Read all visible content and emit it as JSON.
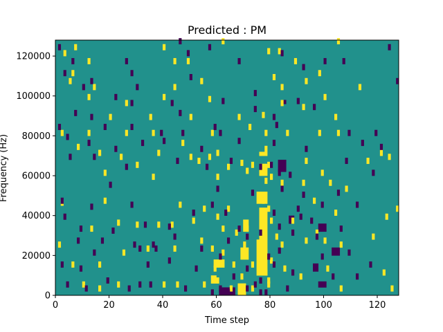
{
  "chart_data": {
    "type": "heatmap",
    "title": "Predicted : PM",
    "xlabel": "Time step",
    "ylabel": "Frequency (Hz)",
    "xlim": [
      0,
      128
    ],
    "ylim": [
      0,
      128000
    ],
    "x_ticks": [
      0,
      20,
      40,
      60,
      80,
      100,
      120
    ],
    "y_ticks": [
      0,
      20000,
      40000,
      60000,
      80000,
      100000,
      120000
    ],
    "x_tick_labels": [
      "0",
      "20",
      "40",
      "60",
      "80",
      "100",
      "120"
    ],
    "y_tick_labels": [
      "0",
      "20000",
      "40000",
      "60000",
      "80000",
      "100000",
      "120000"
    ],
    "grid": false,
    "colormap": "viridis",
    "levels": [
      -1,
      0,
      1
    ],
    "level_colors": {
      "-1": "#440154",
      "0": "#21918c",
      "1": "#fde725"
    },
    "n_time": 128,
    "n_freq": 128,
    "bin_hz": 1000,
    "cells_high": [
      [
        3,
        120
      ],
      [
        7,
        123
      ],
      [
        40,
        123
      ],
      [
        62,
        126
      ],
      [
        79,
        121
      ],
      [
        83,
        121
      ],
      [
        105,
        126
      ],
      [
        12,
        116
      ],
      [
        44,
        116
      ],
      [
        89,
        116
      ],
      [
        6,
        110
      ],
      [
        81,
        108
      ],
      [
        98,
        110
      ],
      [
        5,
        106
      ],
      [
        14,
        103
      ],
      [
        54,
        106
      ],
      [
        93,
        106
      ],
      [
        84,
        103
      ],
      [
        44,
        103
      ],
      [
        113,
        103
      ],
      [
        12,
        98
      ],
      [
        26,
        95
      ],
      [
        40,
        98
      ],
      [
        84,
        95
      ],
      [
        100,
        98
      ],
      [
        92,
        93
      ],
      [
        77,
        89
      ],
      [
        20,
        88
      ],
      [
        35,
        88
      ],
      [
        50,
        88
      ],
      [
        68,
        88
      ],
      [
        104,
        88
      ],
      [
        2,
        80
      ],
      [
        12,
        80
      ],
      [
        26,
        80
      ],
      [
        36,
        80
      ],
      [
        47,
        75
      ],
      [
        58,
        80
      ],
      [
        72,
        83
      ],
      [
        78,
        80
      ],
      [
        86,
        80
      ],
      [
        98,
        80
      ],
      [
        105,
        80
      ],
      [
        8,
        73
      ],
      [
        16,
        70
      ],
      [
        24,
        68
      ],
      [
        30,
        64
      ],
      [
        38,
        70
      ],
      [
        50,
        68
      ],
      [
        53,
        66
      ],
      [
        57,
        68
      ],
      [
        60,
        70
      ],
      [
        64,
        63
      ],
      [
        69,
        65
      ],
      [
        73,
        64
      ],
      [
        78,
        72
      ],
      [
        79,
        64
      ],
      [
        80,
        58
      ],
      [
        84,
        55
      ],
      [
        93,
        66
      ],
      [
        99,
        60
      ],
      [
        116,
        66
      ],
      [
        121,
        70
      ],
      [
        124,
        68
      ],
      [
        18,
        60
      ],
      [
        36,
        58
      ],
      [
        60,
        58
      ],
      [
        71,
        61
      ],
      [
        78,
        56
      ],
      [
        92,
        55
      ],
      [
        102,
        55
      ],
      [
        108,
        52
      ],
      [
        127,
        42
      ],
      [
        2,
        45
      ],
      [
        18,
        46
      ],
      [
        46,
        44
      ],
      [
        55,
        42
      ],
      [
        60,
        38
      ],
      [
        64,
        42
      ],
      [
        77,
        46
      ],
      [
        79,
        42
      ],
      [
        80,
        36
      ],
      [
        82,
        28
      ],
      [
        88,
        36
      ],
      [
        96,
        46
      ],
      [
        104,
        40
      ],
      [
        123,
        38
      ],
      [
        13,
        32
      ],
      [
        23,
        35
      ],
      [
        30,
        34
      ],
      [
        38,
        34
      ],
      [
        43,
        34
      ],
      [
        51,
        36
      ],
      [
        62,
        32
      ],
      [
        67,
        30
      ],
      [
        71,
        32
      ],
      [
        77,
        28
      ],
      [
        78,
        20
      ],
      [
        80,
        16
      ],
      [
        84,
        24
      ],
      [
        97,
        30
      ],
      [
        100,
        26
      ],
      [
        106,
        24
      ],
      [
        118,
        28
      ],
      [
        1,
        24
      ],
      [
        6,
        14
      ],
      [
        16,
        14
      ],
      [
        25,
        20
      ],
      [
        34,
        22
      ],
      [
        44,
        22
      ],
      [
        54,
        26
      ],
      [
        59,
        12
      ],
      [
        62,
        20
      ],
      [
        66,
        14
      ],
      [
        70,
        24
      ],
      [
        73,
        14
      ],
      [
        78,
        10
      ],
      [
        79,
        6
      ],
      [
        85,
        12
      ],
      [
        91,
        8
      ],
      [
        101,
        12
      ],
      [
        122,
        10
      ],
      [
        10,
        4
      ],
      [
        16,
        2
      ],
      [
        23,
        4
      ],
      [
        40,
        4
      ],
      [
        45,
        4
      ],
      [
        55,
        4
      ],
      [
        60,
        6
      ],
      [
        65,
        2
      ],
      [
        69,
        8
      ],
      [
        73,
        2
      ],
      [
        79,
        4
      ],
      [
        106,
        2
      ],
      [
        125,
        2
      ],
      [
        49,
        116
      ],
      [
        57,
        97
      ],
      [
        93,
        26
      ],
      [
        58,
        22
      ]
    ],
    "cells_low": [
      [
        1,
        123
      ],
      [
        6,
        116
      ],
      [
        26,
        116
      ],
      [
        46,
        126
      ],
      [
        49,
        120
      ],
      [
        57,
        123
      ],
      [
        68,
        116
      ],
      [
        84,
        120
      ],
      [
        107,
        116
      ],
      [
        124,
        123
      ],
      [
        3,
        110
      ],
      [
        28,
        110
      ],
      [
        50,
        108
      ],
      [
        92,
        113
      ],
      [
        100,
        116
      ],
      [
        127,
        106
      ],
      [
        10,
        103
      ],
      [
        13,
        106
      ],
      [
        30,
        103
      ],
      [
        74,
        100
      ],
      [
        22,
        98
      ],
      [
        28,
        95
      ],
      [
        43,
        95
      ],
      [
        62,
        96
      ],
      [
        74,
        92
      ],
      [
        90,
        96
      ],
      [
        7,
        90
      ],
      [
        13,
        88
      ],
      [
        46,
        90
      ],
      [
        81,
        88
      ],
      [
        96,
        93
      ],
      [
        1,
        83
      ],
      [
        18,
        83
      ],
      [
        28,
        83
      ],
      [
        39,
        80
      ],
      [
        47,
        80
      ],
      [
        59,
        83
      ],
      [
        61,
        80
      ],
      [
        82,
        84
      ],
      [
        109,
        80
      ],
      [
        119,
        80
      ],
      [
        4,
        78
      ],
      [
        12,
        75
      ],
      [
        22,
        72
      ],
      [
        32,
        75
      ],
      [
        40,
        76
      ],
      [
        54,
        72
      ],
      [
        68,
        76
      ],
      [
        81,
        75
      ],
      [
        93,
        72
      ],
      [
        114,
        75
      ],
      [
        121,
        73
      ],
      [
        5,
        68
      ],
      [
        14,
        68
      ],
      [
        26,
        63
      ],
      [
        45,
        66
      ],
      [
        56,
        63
      ],
      [
        65,
        66
      ],
      [
        76,
        63
      ],
      [
        80,
        64
      ],
      [
        83,
        60
      ],
      [
        87,
        59
      ],
      [
        108,
        66
      ],
      [
        118,
        60
      ],
      [
        20,
        54
      ],
      [
        60,
        52
      ],
      [
        73,
        50
      ],
      [
        84,
        52
      ],
      [
        92,
        49
      ],
      [
        105,
        50
      ],
      [
        2,
        46
      ],
      [
        13,
        43
      ],
      [
        28,
        44
      ],
      [
        51,
        40
      ],
      [
        58,
        44
      ],
      [
        63,
        40
      ],
      [
        81,
        40
      ],
      [
        90,
        42
      ],
      [
        99,
        44
      ],
      [
        112,
        44
      ],
      [
        3,
        38
      ],
      [
        9,
        32
      ],
      [
        21,
        31
      ],
      [
        33,
        34
      ],
      [
        42,
        33
      ],
      [
        68,
        32
      ],
      [
        76,
        30
      ],
      [
        83,
        33
      ],
      [
        91,
        38
      ],
      [
        95,
        36
      ],
      [
        106,
        32
      ],
      [
        8,
        26
      ],
      [
        17,
        26
      ],
      [
        29,
        24
      ],
      [
        36,
        24
      ],
      [
        44,
        28
      ],
      [
        54,
        22
      ],
      [
        64,
        26
      ],
      [
        71,
        28
      ],
      [
        79,
        18
      ],
      [
        83,
        21
      ],
      [
        88,
        30
      ],
      [
        97,
        28
      ],
      [
        109,
        20
      ],
      [
        2,
        14
      ],
      [
        9,
        12
      ],
      [
        14,
        20
      ],
      [
        31,
        22
      ],
      [
        42,
        16
      ],
      [
        52,
        12
      ],
      [
        61,
        18
      ],
      [
        66,
        8
      ],
      [
        71,
        12
      ],
      [
        76,
        6
      ],
      [
        81,
        14
      ],
      [
        88,
        10
      ],
      [
        99,
        18
      ],
      [
        112,
        8
      ],
      [
        4,
        4
      ],
      [
        11,
        2
      ],
      [
        19,
        6
      ],
      [
        27,
        2
      ],
      [
        31,
        4
      ],
      [
        35,
        4
      ],
      [
        48,
        2
      ],
      [
        58,
        0
      ],
      [
        61,
        2
      ],
      [
        64,
        0
      ],
      [
        71,
        2
      ],
      [
        74,
        4
      ],
      [
        76,
        0
      ],
      [
        78,
        0
      ],
      [
        86,
        2
      ],
      [
        103,
        8
      ],
      [
        117,
        14
      ],
      [
        34,
        14
      ],
      [
        37,
        22
      ]
    ],
    "cell_blocks": [
      {
        "t0": 76,
        "t1": 79,
        "f0": 70,
        "f1": 72,
        "level": 1
      },
      {
        "t0": 76,
        "t1": 79,
        "f0": 60,
        "f1": 66,
        "level": 1
      },
      {
        "t0": 75,
        "t1": 79,
        "f0": 46,
        "f1": 52,
        "level": 1
      },
      {
        "t0": 76,
        "t1": 79,
        "f0": 28,
        "f1": 44,
        "level": 1
      },
      {
        "t0": 75,
        "t1": 79,
        "f0": 10,
        "f1": 28,
        "level": 1
      },
      {
        "t0": 59,
        "t1": 63,
        "f0": 14,
        "f1": 18,
        "level": 1
      },
      {
        "t0": 58,
        "t1": 60,
        "f0": 6,
        "f1": 10,
        "level": 1
      },
      {
        "t0": 68,
        "t1": 71,
        "f0": 0,
        "f1": 6,
        "level": 1
      },
      {
        "t0": 69,
        "t1": 72,
        "f0": 18,
        "f1": 24,
        "level": 1
      },
      {
        "t0": 70,
        "t1": 72,
        "f0": 32,
        "f1": 38,
        "level": 1
      },
      {
        "t0": 61,
        "t1": 67,
        "f0": 0,
        "f1": 4,
        "level": -1
      },
      {
        "t0": 83,
        "t1": 86,
        "f0": 62,
        "f1": 68,
        "level": -1
      },
      {
        "t0": 98,
        "t1": 101,
        "f0": 32,
        "f1": 36,
        "level": -1
      },
      {
        "t0": 96,
        "t1": 98,
        "f0": 12,
        "f1": 16,
        "level": -1
      },
      {
        "t0": 103,
        "t1": 106,
        "f0": 20,
        "f1": 24,
        "level": -1
      },
      {
        "t0": 84,
        "t1": 86,
        "f0": 96,
        "f1": 98,
        "level": -1
      },
      {
        "t0": 98,
        "t1": 101,
        "f0": 4,
        "f1": 7,
        "level": -1
      },
      {
        "t0": 87,
        "t1": 89,
        "f0": 36,
        "f1": 40,
        "level": -1
      }
    ]
  }
}
